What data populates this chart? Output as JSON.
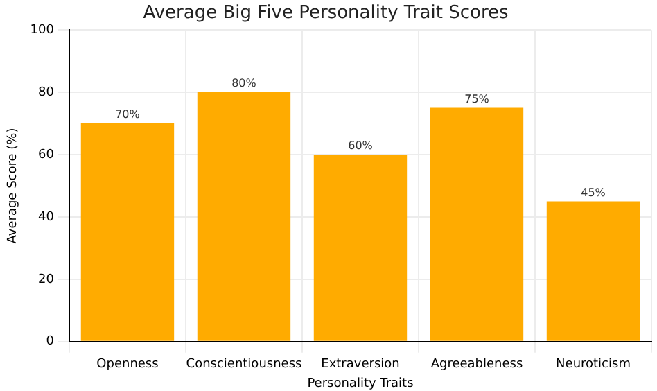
{
  "chart_data": {
    "type": "bar",
    "title": "Average Big Five Personality Trait Scores",
    "xlabel": "Personality Traits",
    "ylabel": "Average Score (%)",
    "categories": [
      "Openness",
      "Conscientiousness",
      "Extraversion",
      "Agreeableness",
      "Neuroticism"
    ],
    "values": [
      70,
      80,
      60,
      75,
      45
    ],
    "value_labels": [
      "70%",
      "80%",
      "60%",
      "75%",
      "45%"
    ],
    "color": "#ffab00",
    "ylim": [
      0,
      100
    ],
    "yticks": [
      0,
      20,
      40,
      60,
      80,
      100
    ],
    "grid": true
  }
}
